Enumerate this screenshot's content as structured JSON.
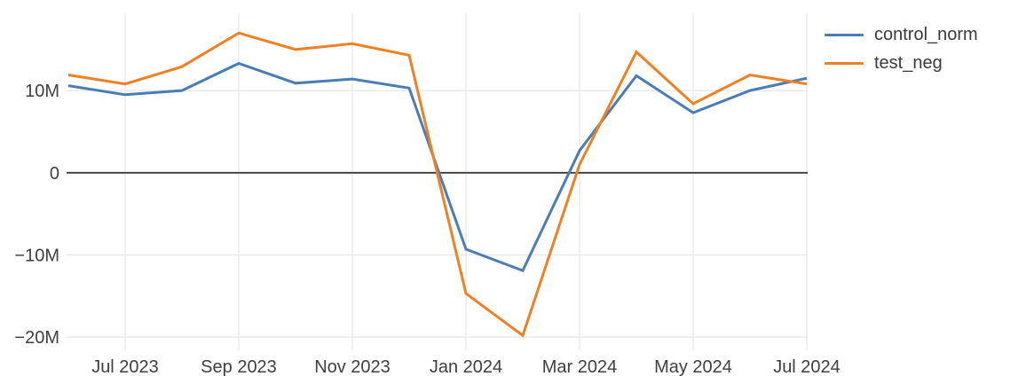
{
  "chart_data": {
    "type": "line",
    "categories": [
      "Jun 2023",
      "Jul 2023",
      "Aug 2023",
      "Sep 2023",
      "Oct 2023",
      "Nov 2023",
      "Dec 2023",
      "Jan 2024",
      "Feb 2024",
      "Mar 2024",
      "Apr 2024",
      "May 2024",
      "Jun 2024",
      "Jul 2024"
    ],
    "series": [
      {
        "name": "control_norm",
        "color": "#4a7cb5",
        "values": [
          10.6,
          9.5,
          10.0,
          13.3,
          10.9,
          11.4,
          10.3,
          -9.3,
          -11.9,
          2.7,
          11.8,
          7.3,
          10.0,
          11.5
        ]
      },
      {
        "name": "test_neg",
        "color": "#ef8125",
        "values": [
          11.9,
          10.8,
          12.9,
          17.0,
          15.0,
          15.7,
          14.3,
          -14.7,
          -19.8,
          1.0,
          14.7,
          8.4,
          11.9,
          10.8
        ]
      }
    ],
    "x_tick_labels": [
      {
        "index": 1,
        "label": "Jul 2023"
      },
      {
        "index": 3,
        "label": "Sep 2023"
      },
      {
        "index": 5,
        "label": "Nov 2023"
      },
      {
        "index": 7,
        "label": "Jan 2024"
      },
      {
        "index": 9,
        "label": "Mar 2024"
      },
      {
        "index": 11,
        "label": "May 2024"
      },
      {
        "index": 13,
        "label": "Jul 2024"
      }
    ],
    "y_ticks": [
      {
        "value": 10,
        "label": "10M"
      },
      {
        "value": 0,
        "label": "0"
      },
      {
        "value": -10,
        "label": "−10M"
      },
      {
        "value": -20,
        "label": "−20M"
      }
    ],
    "ylim": [
      -21.6,
      19.4
    ],
    "grid": true,
    "zeroline": true,
    "legend_position": "top-right",
    "colors": {
      "background": "#ffffff",
      "grid": "#e9e9e9",
      "zeroline": "#3a3a3a",
      "tick_text": "#3f3f3f",
      "legend_text": "#3a3a3a"
    }
  }
}
